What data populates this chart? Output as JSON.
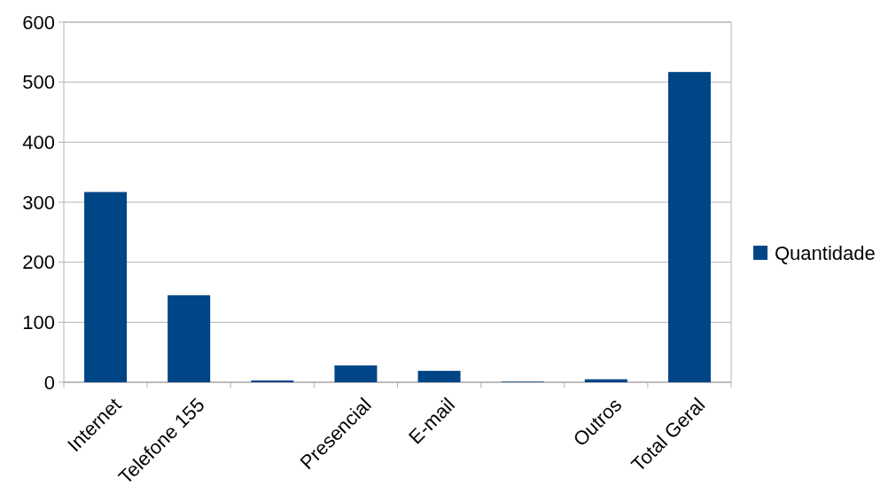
{
  "chart_data": {
    "type": "bar",
    "categories": [
      "Internet",
      "Telefone 155",
      null,
      "Presencial",
      "E-mail",
      null,
      "Outros",
      "Total Geral"
    ],
    "series": [
      {
        "name": "Quantidade",
        "color": "#004586",
        "values": [
          317,
          145,
          3,
          28,
          19,
          1,
          5,
          517
        ]
      }
    ],
    "ylim": [
      0,
      600
    ],
    "yticks": [
      0,
      100,
      200,
      300,
      400,
      500,
      600
    ],
    "grid": "y",
    "legend": "right"
  }
}
